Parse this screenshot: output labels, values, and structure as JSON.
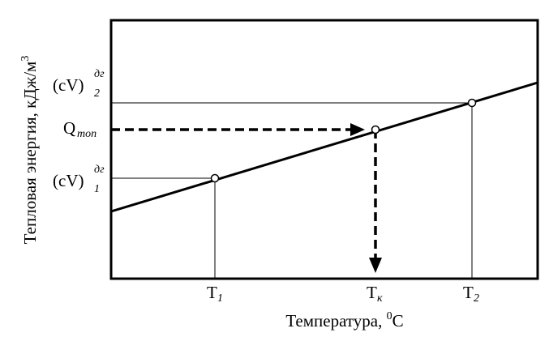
{
  "y_axis_title": {
    "text": "Тепловая энергия, кДж/м",
    "sup": "3"
  },
  "x_axis_title": {
    "text": "Температура, ",
    "sup": "0",
    "unit": "C"
  },
  "x_labels": [
    {
      "base": "T",
      "sub": "1"
    },
    {
      "base": "T",
      "sub": "к"
    },
    {
      "base": "T",
      "sub": "2"
    }
  ],
  "y_labels": [
    {
      "base": "(cV)",
      "sub": "2",
      "sup": "дг"
    },
    {
      "base": "Q",
      "sub": "топ"
    },
    {
      "base": "(cV)",
      "sub": "1",
      "sup": "дг"
    }
  ]
}
